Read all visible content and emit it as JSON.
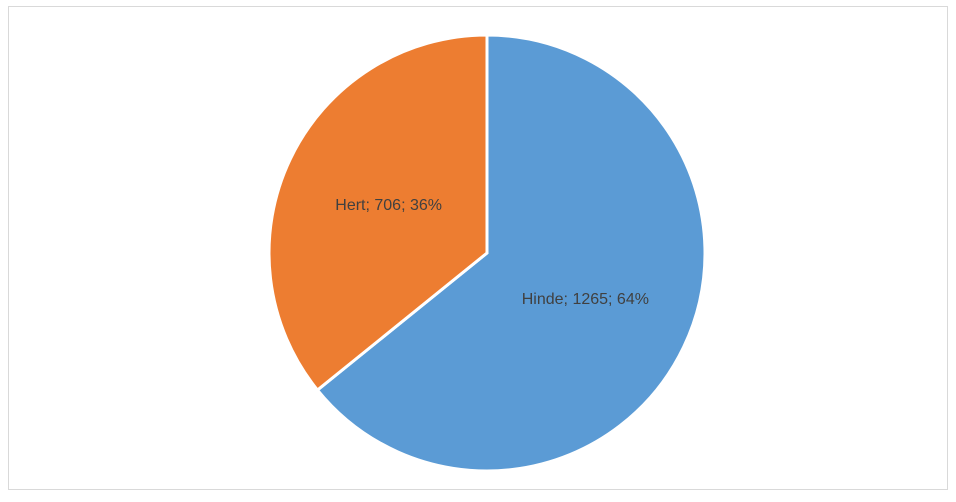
{
  "chart_data": {
    "type": "pie",
    "values": [
      1265,
      706
    ],
    "value_labels": [
      "Hinde; 1265; 64%",
      "Hert; 706; 36%"
    ],
    "colors": [
      "#5b9bd5",
      "#ed7d31"
    ]
  }
}
